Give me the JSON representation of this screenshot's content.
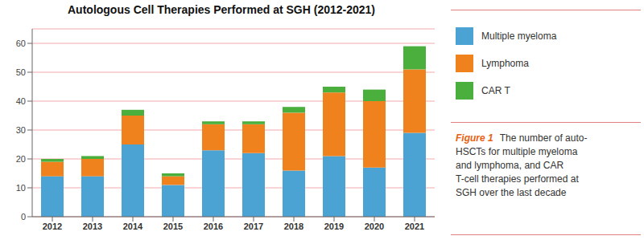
{
  "chart_data": {
    "type": "bar",
    "title": "Autologous Cell Therapies Performed at SGH (2012-2021)",
    "categories": [
      2012,
      2013,
      2014,
      2015,
      2016,
      2017,
      2018,
      2019,
      2020,
      2021
    ],
    "series": [
      {
        "name": "Multiple myeloma",
        "color": "#4BA3D4",
        "values": [
          14,
          14,
          25,
          11,
          23,
          22,
          16,
          21,
          17,
          29
        ]
      },
      {
        "name": "Lymphoma",
        "color": "#F0821E",
        "values": [
          5,
          6,
          10,
          3,
          9,
          10,
          20,
          22,
          23,
          22
        ]
      },
      {
        "name": "CAR T",
        "color": "#4BAF3E",
        "values": [
          1,
          1,
          2,
          1,
          1,
          1,
          2,
          2,
          4,
          8
        ]
      }
    ],
    "stacked": true,
    "ylim": [
      0,
      65
    ],
    "yticks": [
      0,
      10,
      20,
      30,
      40,
      50,
      60
    ],
    "grid": true,
    "legend": "right",
    "annotations": [
      "Figure 1",
      "The number of auto-\nHSCTs for multiple myeloma\nand lymphoma, and CAR\nT-cell therapies performed at\nSGH over the last decade"
    ]
  }
}
